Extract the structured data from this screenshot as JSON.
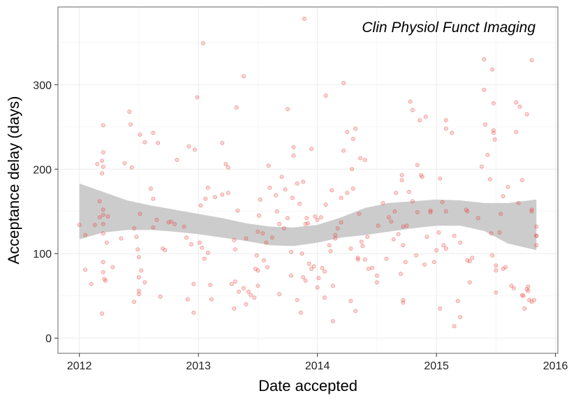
{
  "chart_data": {
    "type": "scatter",
    "title": "",
    "annotation": "Clin Physiol Funct Imaging",
    "xlabel": "Date accepted",
    "ylabel": "Acceptance delay (days)",
    "xlim": [
      2011.82,
      2016.02
    ],
    "ylim": [
      -18,
      392
    ],
    "x_ticks": [
      2012,
      2013,
      2014,
      2015,
      2016
    ],
    "x_tick_labels": [
      "2012",
      "2013",
      "2014",
      "2015",
      "2016"
    ],
    "y_ticks": [
      0,
      100,
      200,
      300
    ],
    "y_tick_labels": [
      "0",
      "100",
      "200",
      "300"
    ],
    "grid": true,
    "legend": "none",
    "point_color": "#e8413a",
    "band_color": "#cccccc",
    "points": [
      [
        2012.0,
        134
      ],
      [
        2012.05,
        122
      ],
      [
        2012.05,
        81
      ],
      [
        2012.1,
        64
      ],
      [
        2012.13,
        134
      ],
      [
        2012.15,
        206
      ],
      [
        2012.17,
        162
      ],
      [
        2012.17,
        143
      ],
      [
        2012.19,
        29
      ],
      [
        2012.19,
        195
      ],
      [
        2012.19,
        210
      ],
      [
        2012.2,
        252
      ],
      [
        2012.2,
        220
      ],
      [
        2012.2,
        203
      ],
      [
        2012.2,
        152
      ],
      [
        2012.2,
        146
      ],
      [
        2012.2,
        135
      ],
      [
        2012.2,
        124
      ],
      [
        2012.2,
        90
      ],
      [
        2012.2,
        78
      ],
      [
        2012.21,
        70
      ],
      [
        2012.22,
        68
      ],
      [
        2012.23,
        113
      ],
      [
        2012.24,
        144
      ],
      [
        2012.28,
        84
      ],
      [
        2012.35,
        118
      ],
      [
        2012.38,
        207
      ],
      [
        2012.42,
        268
      ],
      [
        2012.43,
        253
      ],
      [
        2012.44,
        202
      ],
      [
        2012.46,
        43
      ],
      [
        2012.46,
        130
      ],
      [
        2012.48,
        120
      ],
      [
        2012.49,
        105
      ],
      [
        2012.5,
        96
      ],
      [
        2012.5,
        72
      ],
      [
        2012.5,
        56
      ],
      [
        2012.5,
        52
      ],
      [
        2012.51,
        241
      ],
      [
        2012.51,
        147
      ],
      [
        2012.52,
        80
      ],
      [
        2012.55,
        66
      ],
      [
        2012.55,
        232
      ],
      [
        2012.6,
        177
      ],
      [
        2012.62,
        165
      ],
      [
        2012.62,
        243
      ],
      [
        2012.62,
        131
      ],
      [
        2012.65,
        140
      ],
      [
        2012.66,
        231
      ],
      [
        2012.68,
        49
      ],
      [
        2012.7,
        106
      ],
      [
        2012.72,
        104
      ],
      [
        2012.75,
        137
      ],
      [
        2012.77,
        138
      ],
      [
        2012.8,
        135
      ],
      [
        2012.82,
        211
      ],
      [
        2012.88,
        132
      ],
      [
        2012.9,
        119
      ],
      [
        2012.91,
        46
      ],
      [
        2012.92,
        227
      ],
      [
        2012.94,
        111
      ],
      [
        2012.96,
        30
      ],
      [
        2012.96,
        64
      ],
      [
        2012.97,
        223
      ],
      [
        2012.99,
        285
      ],
      [
        2013.01,
        113
      ],
      [
        2013.02,
        157
      ],
      [
        2013.03,
        107
      ],
      [
        2013.04,
        349
      ],
      [
        2013.05,
        94
      ],
      [
        2013.06,
        165
      ],
      [
        2013.08,
        178
      ],
      [
        2013.08,
        101
      ],
      [
        2013.1,
        63
      ],
      [
        2013.11,
        46
      ],
      [
        2013.14,
        167
      ],
      [
        2013.2,
        170
      ],
      [
        2013.2,
        231
      ],
      [
        2013.23,
        206
      ],
      [
        2013.25,
        202
      ],
      [
        2013.25,
        172
      ],
      [
        2013.28,
        64
      ],
      [
        2013.3,
        116
      ],
      [
        2013.3,
        35
      ],
      [
        2013.31,
        105
      ],
      [
        2013.31,
        67
      ],
      [
        2013.32,
        273
      ],
      [
        2013.33,
        151
      ],
      [
        2013.34,
        55
      ],
      [
        2013.38,
        310
      ],
      [
        2013.38,
        59
      ],
      [
        2013.4,
        118
      ],
      [
        2013.4,
        40
      ],
      [
        2013.42,
        55
      ],
      [
        2013.44,
        51
      ],
      [
        2013.47,
        48
      ],
      [
        2013.48,
        82
      ],
      [
        2013.49,
        98
      ],
      [
        2013.5,
        126
      ],
      [
        2013.5,
        80
      ],
      [
        2013.5,
        62
      ],
      [
        2013.51,
        145
      ],
      [
        2013.52,
        164
      ],
      [
        2013.54,
        124
      ],
      [
        2013.55,
        92
      ],
      [
        2013.57,
        113
      ],
      [
        2013.58,
        84
      ],
      [
        2013.59,
        204
      ],
      [
        2013.6,
        178
      ],
      [
        2013.62,
        119
      ],
      [
        2013.65,
        169
      ],
      [
        2013.66,
        150
      ],
      [
        2013.68,
        52
      ],
      [
        2013.68,
        135
      ],
      [
        2013.7,
        191
      ],
      [
        2013.72,
        130
      ],
      [
        2013.73,
        176
      ],
      [
        2013.75,
        271
      ],
      [
        2013.75,
        142
      ],
      [
        2013.78,
        102
      ],
      [
        2013.78,
        74
      ],
      [
        2013.79,
        166
      ],
      [
        2013.8,
        216
      ],
      [
        2013.8,
        226
      ],
      [
        2013.83,
        183
      ],
      [
        2013.83,
        45
      ],
      [
        2013.85,
        159
      ],
      [
        2013.86,
        30
      ],
      [
        2013.87,
        100
      ],
      [
        2013.88,
        185
      ],
      [
        2013.88,
        72
      ],
      [
        2013.89,
        378
      ],
      [
        2013.9,
        68
      ],
      [
        2013.9,
        135
      ],
      [
        2013.91,
        142
      ],
      [
        2013.92,
        136
      ],
      [
        2013.93,
        88
      ],
      [
        2013.95,
        224
      ],
      [
        2013.95,
        82
      ],
      [
        2013.97,
        85
      ],
      [
        2013.98,
        144
      ],
      [
        2014.0,
        140
      ],
      [
        2014.0,
        60
      ],
      [
        2014.01,
        71
      ],
      [
        2014.03,
        143
      ],
      [
        2014.04,
        83
      ],
      [
        2014.06,
        48
      ],
      [
        2014.06,
        79
      ],
      [
        2014.07,
        287
      ],
      [
        2014.07,
        158
      ],
      [
        2014.1,
        110
      ],
      [
        2014.11,
        103
      ],
      [
        2014.12,
        175
      ],
      [
        2014.13,
        62
      ],
      [
        2014.13,
        20
      ],
      [
        2014.15,
        122
      ],
      [
        2014.15,
        118
      ],
      [
        2014.17,
        130
      ],
      [
        2014.2,
        166
      ],
      [
        2014.2,
        137
      ],
      [
        2014.22,
        302
      ],
      [
        2014.22,
        222
      ],
      [
        2014.25,
        244
      ],
      [
        2014.25,
        172
      ],
      [
        2014.28,
        44
      ],
      [
        2014.28,
        106
      ],
      [
        2014.29,
        200
      ],
      [
        2014.3,
        177
      ],
      [
        2014.3,
        236
      ],
      [
        2014.32,
        248
      ],
      [
        2014.32,
        32
      ],
      [
        2014.34,
        93
      ],
      [
        2014.34,
        95
      ],
      [
        2014.35,
        147
      ],
      [
        2014.36,
        213
      ],
      [
        2014.37,
        114
      ],
      [
        2014.38,
        109
      ],
      [
        2014.4,
        93
      ],
      [
        2014.4,
        211
      ],
      [
        2014.42,
        120
      ],
      [
        2014.43,
        82
      ],
      [
        2014.46,
        83
      ],
      [
        2014.5,
        66
      ],
      [
        2014.5,
        74
      ],
      [
        2014.51,
        133
      ],
      [
        2014.55,
        160
      ],
      [
        2014.58,
        94
      ],
      [
        2014.6,
        143
      ],
      [
        2014.62,
        138
      ],
      [
        2014.64,
        117
      ],
      [
        2014.65,
        150
      ],
      [
        2014.66,
        172
      ],
      [
        2014.68,
        123
      ],
      [
        2014.7,
        76
      ],
      [
        2014.71,
        193
      ],
      [
        2014.71,
        187
      ],
      [
        2014.72,
        132
      ],
      [
        2014.72,
        45
      ],
      [
        2014.72,
        42
      ],
      [
        2014.72,
        110
      ],
      [
        2014.74,
        90
      ],
      [
        2014.75,
        133
      ],
      [
        2014.77,
        173
      ],
      [
        2014.78,
        280
      ],
      [
        2014.8,
        270
      ],
      [
        2014.8,
        162
      ],
      [
        2014.83,
        98
      ],
      [
        2014.84,
        149
      ],
      [
        2014.84,
        205
      ],
      [
        2014.86,
        258
      ],
      [
        2014.87,
        193
      ],
      [
        2014.88,
        191
      ],
      [
        2014.9,
        87
      ],
      [
        2014.91,
        262
      ],
      [
        2014.92,
        120
      ],
      [
        2014.95,
        151
      ],
      [
        2014.95,
        149
      ],
      [
        2014.98,
        90
      ],
      [
        2015.0,
        104
      ],
      [
        2015.02,
        125
      ],
      [
        2015.03,
        189
      ],
      [
        2015.03,
        35
      ],
      [
        2015.05,
        161
      ],
      [
        2015.06,
        110
      ],
      [
        2015.08,
        106
      ],
      [
        2015.08,
        150
      ],
      [
        2015.08,
        248
      ],
      [
        2015.08,
        258
      ],
      [
        2015.13,
        243
      ],
      [
        2015.15,
        14
      ],
      [
        2015.15,
        121
      ],
      [
        2015.18,
        44
      ],
      [
        2015.2,
        25
      ],
      [
        2015.2,
        113
      ],
      [
        2015.25,
        152
      ],
      [
        2015.26,
        92
      ],
      [
        2015.26,
        150
      ],
      [
        2015.28,
        91
      ],
      [
        2015.28,
        66
      ],
      [
        2015.3,
        95
      ],
      [
        2015.35,
        142
      ],
      [
        2015.38,
        203
      ],
      [
        2015.4,
        330
      ],
      [
        2015.4,
        294
      ],
      [
        2015.41,
        253
      ],
      [
        2015.43,
        217
      ],
      [
        2015.45,
        188
      ],
      [
        2015.46,
        124
      ],
      [
        2015.47,
        98
      ],
      [
        2015.47,
        318
      ],
      [
        2015.48,
        278
      ],
      [
        2015.48,
        246
      ],
      [
        2015.48,
        243
      ],
      [
        2015.49,
        235
      ],
      [
        2015.5,
        80
      ],
      [
        2015.5,
        86
      ],
      [
        2015.5,
        54
      ],
      [
        2015.53,
        125
      ],
      [
        2015.54,
        147
      ],
      [
        2015.56,
        168
      ],
      [
        2015.56,
        82
      ],
      [
        2015.58,
        84
      ],
      [
        2015.6,
        179
      ],
      [
        2015.63,
        62
      ],
      [
        2015.65,
        59
      ],
      [
        2015.67,
        244
      ],
      [
        2015.67,
        279
      ],
      [
        2015.69,
        160
      ],
      [
        2015.7,
        274
      ],
      [
        2015.72,
        187
      ],
      [
        2015.72,
        51
      ],
      [
        2015.73,
        50
      ],
      [
        2015.74,
        35
      ],
      [
        2015.76,
        265
      ],
      [
        2015.76,
        58
      ],
      [
        2015.77,
        56
      ],
      [
        2015.77,
        61
      ],
      [
        2015.78,
        45
      ],
      [
        2015.8,
        329
      ],
      [
        2015.8,
        150
      ],
      [
        2015.8,
        152
      ],
      [
        2015.8,
        43
      ],
      [
        2015.82,
        45
      ],
      [
        2015.84,
        132
      ],
      [
        2015.84,
        121
      ],
      [
        2015.84,
        121
      ],
      [
        2015.84,
        110
      ]
    ],
    "smooth_band": [
      [
        2012.0,
        183,
        117
      ],
      [
        2012.2,
        173,
        125
      ],
      [
        2012.4,
        163,
        128
      ],
      [
        2012.6,
        157,
        128
      ],
      [
        2012.8,
        152,
        126
      ],
      [
        2013.0,
        147,
        123
      ],
      [
        2013.2,
        142,
        119
      ],
      [
        2013.4,
        136,
        115
      ],
      [
        2013.6,
        132,
        110
      ],
      [
        2013.8,
        131,
        109
      ],
      [
        2014.0,
        134,
        113
      ],
      [
        2014.2,
        143,
        119
      ],
      [
        2014.4,
        154,
        122
      ],
      [
        2014.6,
        160,
        126
      ],
      [
        2014.8,
        162,
        130
      ],
      [
        2015.0,
        164,
        133
      ],
      [
        2015.2,
        163,
        133
      ],
      [
        2015.4,
        160,
        127
      ],
      [
        2015.6,
        160,
        112
      ],
      [
        2015.84,
        164,
        104
      ]
    ]
  }
}
